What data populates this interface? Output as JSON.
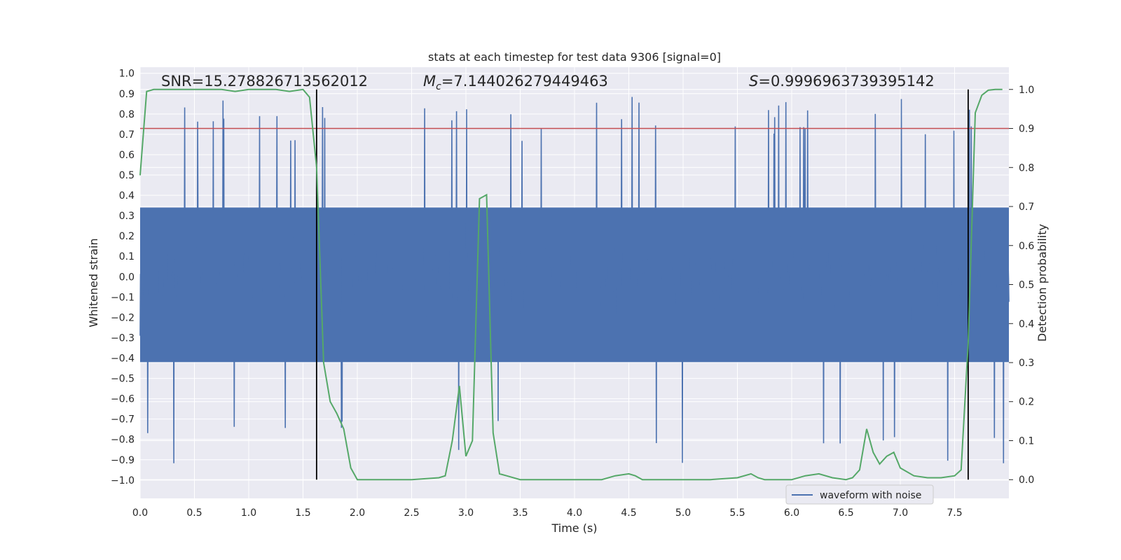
{
  "chart_data": {
    "type": "line",
    "title": "stats at each timestep for test data 9306 [signal=0]",
    "xlabel": "Time (s)",
    "ylabel": "Whitened strain",
    "y2label": "Detection probability",
    "xlim": [
      0.0,
      8.0
    ],
    "ylim": [
      -1.09,
      1.03
    ],
    "y2lim": [
      -0.048,
      1.057
    ],
    "xticks": [
      "0.0",
      "0.5",
      "1.0",
      "1.5",
      "2.0",
      "2.5",
      "3.0",
      "3.5",
      "4.0",
      "4.5",
      "5.0",
      "5.5",
      "6.0",
      "6.5",
      "7.0",
      "7.5"
    ],
    "yticks": [
      "1.0",
      "0.9",
      "0.8",
      "0.7",
      "0.6",
      "0.5",
      "0.4",
      "0.3",
      "0.2",
      "0.1",
      "0.0",
      "−0.1",
      "−0.2",
      "−0.3",
      "−0.4",
      "−0.5",
      "−0.6",
      "−0.7",
      "−0.8",
      "−0.9",
      "−1.0"
    ],
    "y2ticks": [
      "1.0",
      "0.9",
      "0.8",
      "0.7",
      "0.6",
      "0.5",
      "0.4",
      "0.3",
      "0.2",
      "0.1",
      "0.0"
    ],
    "annotations": {
      "snr_label": "SNR",
      "snr_value": "=15.278826713562012",
      "mc_symbol": "M",
      "mc_sub": "c",
      "mc_value": "=7.144026279449463",
      "s_symbol": "S",
      "s_value": "=0.9996963739395142"
    },
    "threshold": {
      "value": 0.9,
      "axis": "probability",
      "color": "#c44e52"
    },
    "vertical_markers": {
      "x": [
        1.625,
        7.625
      ],
      "color": "#000000"
    },
    "legend": {
      "entries": [
        "waveform with noise"
      ],
      "placement": "lower-right"
    },
    "series": [
      {
        "name": "waveform with noise",
        "color": "#4c72b0",
        "description": "noisy whitened strain, dense oscillation roughly within -0.45 to 0.5 with spikes near +0.9 and -1.0"
      },
      {
        "name": "detection probability",
        "color": "#55a868",
        "axis": "right",
        "x": [
          0.0,
          0.06,
          0.125,
          0.25,
          0.5,
          0.75,
          0.875,
          1.0,
          1.25,
          1.375,
          1.5,
          1.56,
          1.625,
          1.69,
          1.75,
          1.81,
          1.875,
          1.94,
          2.0,
          2.25,
          2.5,
          2.75,
          2.81,
          2.875,
          2.94,
          3.0,
          3.06,
          3.125,
          3.19,
          3.25,
          3.31,
          3.375,
          3.5,
          3.75,
          4.0,
          4.25,
          4.375,
          4.5,
          4.56,
          4.625,
          4.75,
          5.0,
          5.25,
          5.5,
          5.625,
          5.69,
          5.75,
          6.0,
          6.125,
          6.25,
          6.375,
          6.5,
          6.56,
          6.625,
          6.69,
          6.75,
          6.81,
          6.875,
          6.94,
          7.0,
          7.125,
          7.25,
          7.375,
          7.5,
          7.56,
          7.625,
          7.69,
          7.75,
          7.81,
          7.875,
          7.94
        ],
        "y": [
          0.78,
          0.995,
          1.0,
          1.0,
          1.0,
          1.0,
          0.995,
          1.0,
          1.0,
          0.995,
          1.0,
          0.98,
          0.8,
          0.3,
          0.2,
          0.17,
          0.13,
          0.03,
          0.0,
          0.0,
          0.0,
          0.005,
          0.01,
          0.1,
          0.24,
          0.06,
          0.1,
          0.72,
          0.73,
          0.12,
          0.015,
          0.01,
          0.0,
          0.0,
          0.0,
          0.0,
          0.01,
          0.015,
          0.01,
          0.0,
          0.0,
          0.0,
          0.0,
          0.005,
          0.015,
          0.005,
          0.0,
          0.0,
          0.01,
          0.015,
          0.005,
          0.0,
          0.005,
          0.025,
          0.13,
          0.07,
          0.04,
          0.06,
          0.07,
          0.03,
          0.01,
          0.005,
          0.005,
          0.01,
          0.025,
          0.35,
          0.94,
          0.985,
          0.998,
          1.0,
          1.0
        ]
      }
    ]
  }
}
